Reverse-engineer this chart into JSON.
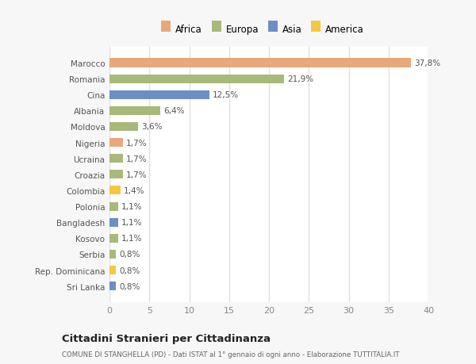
{
  "categories": [
    "Sri Lanka",
    "Rep. Dominicana",
    "Serbia",
    "Kosovo",
    "Bangladesh",
    "Polonia",
    "Colombia",
    "Croazia",
    "Ucraina",
    "Nigeria",
    "Moldova",
    "Albania",
    "Cina",
    "Romania",
    "Marocco"
  ],
  "values": [
    0.8,
    0.8,
    0.8,
    1.1,
    1.1,
    1.1,
    1.4,
    1.7,
    1.7,
    1.7,
    3.6,
    6.4,
    12.5,
    21.9,
    37.8
  ],
  "labels": [
    "0,8%",
    "0,8%",
    "0,8%",
    "1,1%",
    "1,1%",
    "1,1%",
    "1,4%",
    "1,7%",
    "1,7%",
    "1,7%",
    "3,6%",
    "6,4%",
    "12,5%",
    "21,9%",
    "37,8%"
  ],
  "colors": [
    "#6b8ec5",
    "#f5c842",
    "#a8b97a",
    "#a8b97a",
    "#6b8ec5",
    "#a8b97a",
    "#f5c842",
    "#a8b97a",
    "#a8b97a",
    "#e8a87c",
    "#a8b97a",
    "#a8b97a",
    "#6b8ec5",
    "#a8b97a",
    "#e8a87c"
  ],
  "legend": {
    "Africa": "#e8a87c",
    "Europa": "#a8b97a",
    "Asia": "#6b8ec5",
    "America": "#f5c842"
  },
  "title": "Cittadini Stranieri per Cittadinanza",
  "subtitle": "COMUNE DI STANGHELLA (PD) - Dati ISTAT al 1° gennaio di ogni anno - Elaborazione TUTTITALIA.IT",
  "xlim": [
    0,
    40
  ],
  "xticks": [
    0,
    5,
    10,
    15,
    20,
    25,
    30,
    35,
    40
  ],
  "background_color": "#f7f7f7",
  "plot_bg_color": "#ffffff",
  "bar_height": 0.55
}
